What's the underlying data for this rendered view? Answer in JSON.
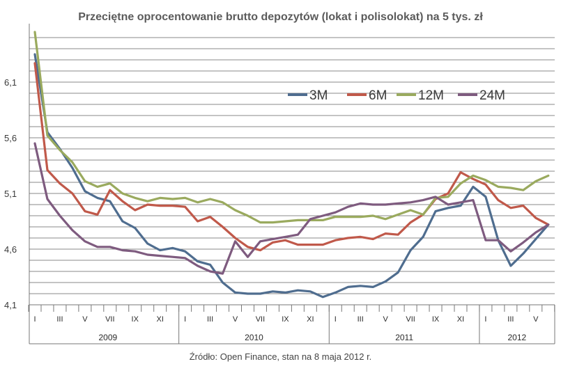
{
  "chart_data": {
    "type": "line",
    "title": "Przeciętne oprocentowanie brutto depozytów (lokat i polisolokat) na 5 tys. zł",
    "source": "Źródło: Open Finance, stan na 8 maja 2012 r.",
    "y_ticks": [
      "4,1",
      "4,6",
      "5,1",
      "5,6",
      "6,1"
    ],
    "ylim": [
      4.1,
      6.5
    ],
    "x_count": 42,
    "month_labels": [
      "I",
      "III",
      "V",
      "VII",
      "IX",
      "XI",
      "I",
      "III",
      "V",
      "VII",
      "IX",
      "XI",
      "I",
      "III",
      "V",
      "VII",
      "IX",
      "XI",
      "I",
      "III",
      "V"
    ],
    "years": [
      "2009",
      "2010",
      "2011",
      "2012"
    ],
    "colors": {
      "3M": "#4f6d8f",
      "6M": "#c0594a",
      "12M": "#9aaa5e",
      "24M": "#7e5b7f",
      "grid": "#888888",
      "axis": "#777777"
    },
    "series": [
      {
        "name": "3M",
        "values": [
          6.35,
          5.65,
          5.5,
          5.33,
          5.12,
          5.06,
          5.03,
          4.85,
          4.79,
          4.65,
          4.59,
          4.61,
          4.58,
          4.49,
          4.46,
          4.3,
          4.21,
          4.2,
          4.2,
          4.22,
          4.21,
          4.23,
          4.22,
          4.17,
          4.21,
          4.26,
          4.27,
          4.26,
          4.31,
          4.39,
          4.59,
          4.71,
          4.94,
          4.97,
          4.99,
          5.16,
          5.07,
          4.68,
          4.45,
          4.56,
          4.69,
          4.82
        ]
      },
      {
        "name": "6M",
        "values": [
          6.27,
          5.31,
          5.19,
          5.1,
          4.94,
          4.91,
          5.13,
          5.03,
          4.95,
          5.0,
          4.99,
          4.99,
          4.98,
          4.85,
          4.89,
          4.8,
          4.7,
          4.62,
          4.59,
          4.66,
          4.68,
          4.64,
          4.64,
          4.64,
          4.68,
          4.7,
          4.71,
          4.69,
          4.74,
          4.73,
          4.84,
          4.91,
          5.05,
          5.1,
          5.29,
          5.23,
          5.18,
          5.04,
          4.97,
          4.99,
          4.88,
          4.82
        ]
      },
      {
        "name": "12M",
        "values": [
          6.55,
          5.62,
          5.49,
          5.38,
          5.21,
          5.16,
          5.19,
          5.1,
          5.06,
          5.03,
          5.06,
          5.05,
          5.06,
          5.02,
          5.05,
          5.02,
          4.95,
          4.9,
          4.84,
          4.84,
          4.85,
          4.86,
          4.86,
          4.86,
          4.89,
          4.89,
          4.89,
          4.9,
          4.87,
          4.91,
          4.95,
          4.91,
          5.06,
          5.07,
          5.19,
          5.26,
          5.22,
          5.16,
          5.15,
          5.13,
          5.21,
          5.26
        ]
      },
      {
        "name": "24M",
        "values": [
          5.55,
          5.05,
          4.9,
          4.77,
          4.67,
          4.62,
          4.62,
          4.59,
          4.58,
          4.55,
          4.54,
          4.53,
          4.52,
          4.45,
          4.4,
          4.38,
          4.67,
          4.53,
          4.67,
          4.69,
          4.71,
          4.73,
          4.87,
          4.9,
          4.93,
          4.98,
          5.01,
          5.0,
          5.0,
          5.01,
          5.02,
          5.04,
          5.07,
          5.0,
          5.02,
          5.04,
          4.68,
          4.68,
          4.58,
          4.66,
          4.75,
          4.82
        ]
      }
    ]
  }
}
